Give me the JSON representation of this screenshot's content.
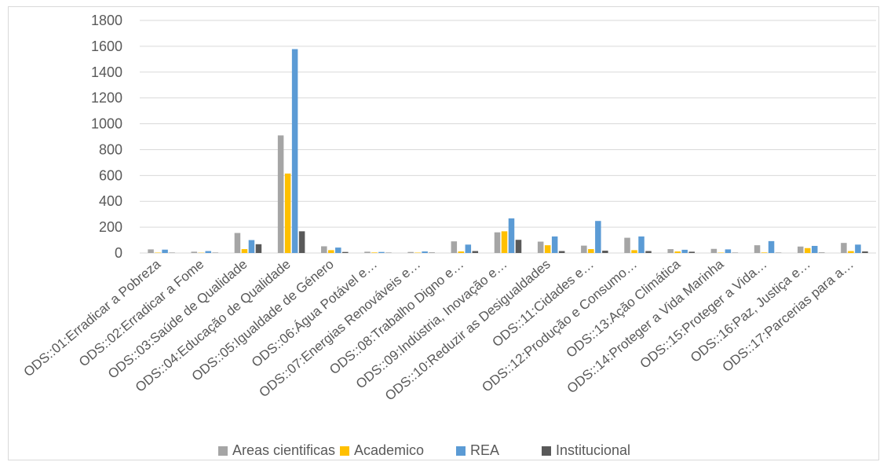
{
  "chart_data": {
    "type": "bar",
    "title": "",
    "xlabel": "",
    "ylabel": "",
    "ylim": [
      0,
      1800
    ],
    "yticks": [
      0,
      200,
      400,
      600,
      800,
      1000,
      1200,
      1400,
      1600,
      1800
    ],
    "grid": true,
    "legend": "bottom",
    "categories": [
      "ODS::01:Erradicar a Pobreza",
      "ODS::02:Erradicar a Fome",
      "ODS::03:Saúde de Qualidade",
      "ODS::04:Educação de Qualidade",
      "ODS::05:Igualdade de Género",
      "ODS::06:Água Potável e…",
      "ODS::07:Energias Renováveis e…",
      "ODS::08:Trabalho Digno e…",
      "ODS::09:Indústria, Inovação e…",
      "ODS::10:Reduzir as Desigualdades",
      "ODS::11:Cidades e…",
      "ODS::12:Produção e Consumo…",
      "ODS::13:Ação Climática",
      "ODS::14:Proteger a Vida Marinha",
      "ODS::15:Proteger a Vida…",
      "ODS::16:Paz, Justiça e…",
      "ODS::17:Parcerias para a…"
    ],
    "series": [
      {
        "name": "Areas cientificas",
        "color": "#a5a5a5",
        "values": [
          28,
          10,
          155,
          910,
          52,
          10,
          8,
          90,
          160,
          88,
          57,
          118,
          30,
          32,
          60,
          50,
          78
        ]
      },
      {
        "name": "Academico",
        "color": "#ffc000",
        "values": [
          3,
          2,
          30,
          615,
          22,
          4,
          3,
          12,
          168,
          60,
          30,
          22,
          12,
          3,
          4,
          38,
          15
        ]
      },
      {
        "name": "REA",
        "color": "#5b9bd5",
        "values": [
          26,
          15,
          100,
          1578,
          42,
          8,
          12,
          65,
          268,
          128,
          248,
          128,
          25,
          28,
          92,
          55,
          65
        ]
      },
      {
        "name": "Institucional",
        "color": "#595959",
        "values": [
          2,
          2,
          68,
          168,
          8,
          2,
          3,
          15,
          102,
          15,
          18,
          15,
          10,
          2,
          2,
          3,
          12
        ]
      }
    ]
  }
}
